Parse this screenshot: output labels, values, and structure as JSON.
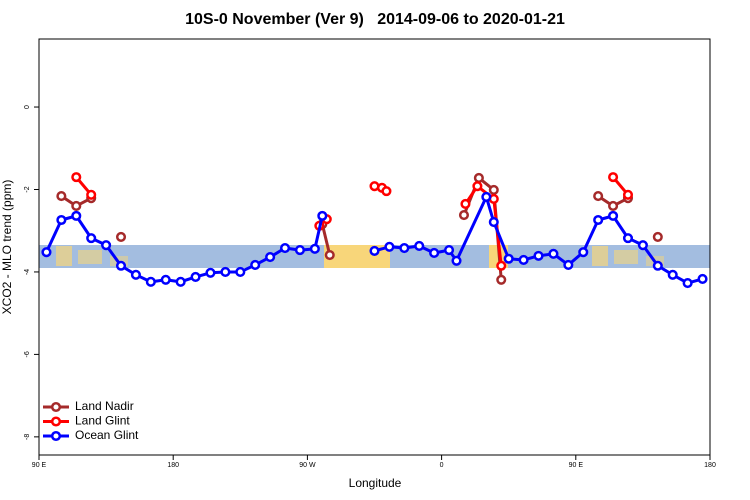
{
  "chart_data": {
    "type": "line",
    "title": "10S-0 November (Ver 9)   2014-09-06 to 2020-01-21",
    "x_label": "Longitude",
    "y_label": "XCO2 - MLO trend (ppm)",
    "xlim": [
      90,
      540
    ],
    "ylim": [
      -8.44,
      1.65
    ],
    "xticks": [
      {
        "value": 90,
        "label": "90 E"
      },
      180,
      {
        "value": 270,
        "label": "90 W"
      },
      {
        "value": 360,
        "label": "0"
      },
      {
        "value": 450,
        "label": "90 E"
      },
      {
        "value": 540,
        "label": "180"
      }
    ],
    "yticks": [
      0,
      -2,
      -4,
      -6,
      -8
    ],
    "legend": "bottomleft",
    "series": [
      {
        "name": "Land Nadir",
        "color": "#a52a2a",
        "x": [
          105,
          115,
          125,
          null,
          145,
          null,
          280,
          285,
          null,
          375,
          385,
          395,
          400,
          null,
          465,
          475,
          485,
          null,
          505
        ],
        "values": [
          -2.16,
          -2.4,
          -2.21,
          null,
          -3.15,
          null,
          -2.84,
          -3.59,
          null,
          -2.62,
          -1.72,
          -2.01,
          -4.19,
          null,
          -2.16,
          -2.4,
          -2.21,
          null,
          -3.15
        ]
      },
      {
        "name": "Land Glint",
        "color": "#ff0000",
        "x": [
          115,
          125,
          null,
          278,
          283,
          null,
          315,
          320,
          323,
          null,
          376,
          384,
          395,
          400,
          null,
          475,
          485
        ],
        "values": [
          -1.7,
          -2.13,
          null,
          -2.88,
          -2.72,
          null,
          -1.92,
          -1.96,
          -2.04,
          null,
          -2.35,
          -1.92,
          -2.23,
          -3.85,
          null,
          -1.7,
          -2.13
        ]
      },
      {
        "name": "Ocean Glint",
        "color": "#0000ff",
        "x": [
          95,
          105,
          115,
          125,
          135,
          145,
          155,
          165,
          175,
          185,
          195,
          205,
          215,
          225,
          235,
          245,
          255,
          265,
          275,
          280,
          null,
          315,
          325,
          335,
          345,
          355,
          365,
          370,
          390,
          395,
          405,
          415,
          425,
          435,
          445,
          455,
          465,
          475,
          485,
          495,
          505,
          515,
          525,
          535
        ],
        "values": [
          -3.52,
          -2.74,
          -2.64,
          -3.18,
          -3.35,
          -3.85,
          -4.07,
          -4.24,
          -4.19,
          -4.24,
          -4.12,
          -4.02,
          -4.0,
          -4.0,
          -3.83,
          -3.64,
          -3.42,
          -3.47,
          -3.44,
          -2.64,
          null,
          -3.49,
          -3.39,
          -3.42,
          -3.37,
          -3.54,
          -3.47,
          -3.73,
          -2.18,
          -2.79,
          -3.68,
          -3.71,
          -3.61,
          -3.56,
          -3.83,
          -3.52,
          -2.74,
          -2.64,
          -3.18,
          -3.35,
          -3.85,
          -4.07,
          -4.27,
          -4.17
        ]
      }
    ]
  }
}
